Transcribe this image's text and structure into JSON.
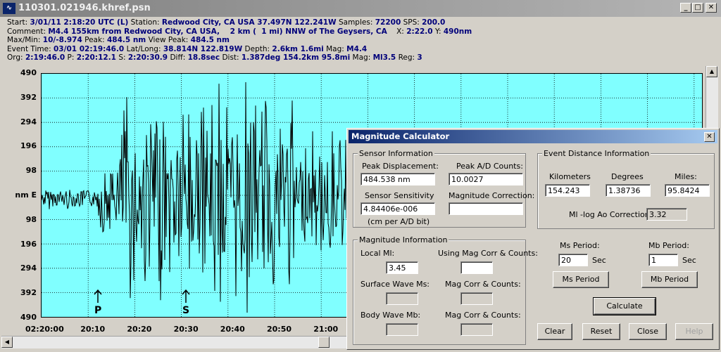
{
  "window": {
    "title": "110301.021946.khref.psn",
    "app_icon": "waveform-icon",
    "buttons": [
      "_",
      "□",
      "✕"
    ]
  },
  "header": {
    "row1": {
      "start_label": "Start:",
      "start": "3/01/11  2:18:20 UTC (L)",
      "station_label": "Station:",
      "station": "Redwood City, CA USA 37.497N 122.241W",
      "samples_label": "Samples:",
      "samples": "72200",
      "sps_label": "SPS:",
      "sps": "200.0"
    },
    "row2": {
      "comment_label": "Comment:",
      "comment": "M4.4 155km from Redwood City, CA USA,    2 km (  1 mi) NNW of The Geysers, CA",
      "x_label": "X:",
      "x": "2:22.0",
      "y_label": "Y:",
      "y": "490nm"
    },
    "row3": {
      "maxmin_label": "Max/Min:",
      "maxmin": "10/-8.974",
      "peak_label": "Peak:",
      "peak": "484.5 nm",
      "viewpeak_label": "View Peak:",
      "viewpeak": "484.5 nm"
    },
    "row4": {
      "event_label": "Event Time:",
      "event": "03/01 02:19:46.0",
      "latlong_label": "Lat/Long:",
      "latlong": "38.814N 122.819W",
      "depth_label": "Depth:",
      "depth": "2.6km 1.6mi",
      "mag_label": "Mag:",
      "mag": "M4.4"
    },
    "row5": {
      "org_label": "Org:",
      "org": "2:19:46.0",
      "p_label": "P:",
      "p": "2:20:12.1",
      "s_label": "S:",
      "s": "2:20:30.9",
      "diff_label": "Diff:",
      "diff": "18.8sec",
      "dist_label": "Dist:",
      "dist": "1.387deg 154.2km 95.8mi",
      "mag_label": "Mag:",
      "mag": "Ml3.5",
      "reg_label": "Reg:",
      "reg": "3"
    }
  },
  "plot": {
    "y_ticks": [
      "490",
      "392",
      "294",
      "196",
      "98",
      "nm  E",
      "98",
      "196",
      "294",
      "392",
      "490"
    ],
    "x_ticks": [
      "02:20:00",
      "20:10",
      "20:20",
      "20:30",
      "20:40",
      "20:50",
      "21:00"
    ],
    "p_marker": "P",
    "s_marker": "S",
    "background": "#80ffff",
    "trace_color": "#000000"
  },
  "dialog": {
    "title": "Magnitude Calculator",
    "sensor": {
      "group_title": "Sensor Information",
      "peak_disp_label": "Peak Displacement:",
      "peak_disp": "484.538 nm",
      "peak_ad_label": "Peak A/D Counts:",
      "peak_ad": "10.0027",
      "sensitivity_label": "Sensor Sensitivity",
      "sensitivity": "4.84406e-006",
      "sensitivity_unit": "(cm per A/D bit)",
      "mag_corr_label": "Magnitude Correction:",
      "mag_corr": ""
    },
    "distance": {
      "group_title": "Event Distance Information",
      "km_label": "Kilometers",
      "km": "154.243",
      "deg_label": "Degrees",
      "deg": "1.38736",
      "mi_label": "Miles:",
      "mi": "95.8424",
      "ml_corr_label": "Ml -log Ao Correction:",
      "ml_corr": "3.32"
    },
    "magnitude": {
      "group_title": "Magnitude Information",
      "local_label": "Local Ml:",
      "local": "3.45",
      "using_label": "Using Mag Corr & Counts:",
      "using": "",
      "surface_label": "Surface Wave Ms:",
      "surface": "",
      "corr1_label": "Mag Corr & Counts:",
      "corr1": "",
      "body_label": "Body Wave Mb:",
      "body": "",
      "corr2_label": "Mag Corr & Counts:",
      "corr2": ""
    },
    "periods": {
      "ms_label": "Ms Period:",
      "ms": "20",
      "ms_unit": "Sec",
      "mb_label": "Mb Period:",
      "mb": "1",
      "mb_unit": "Sec",
      "ms_button": "Ms Period",
      "mb_button": "Mb Period"
    },
    "buttons": {
      "calculate": "Calculate",
      "clear": "Clear",
      "reset": "Reset",
      "close": "Close",
      "help": "Help"
    }
  }
}
